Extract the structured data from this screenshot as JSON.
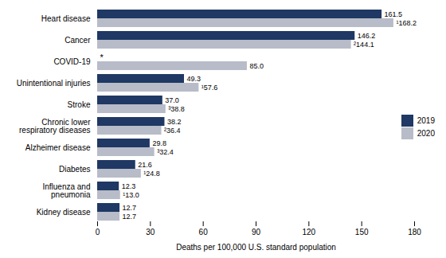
{
  "chart_data": {
    "type": "bar",
    "orientation": "horizontal",
    "categories": [
      "Kidney disease",
      "Influenza and\npneumonia",
      "Diabetes",
      "Alzheimer disease",
      "Chronic lower\nrespiratory diseases",
      "Stroke",
      "Unintentional injuries",
      "COVID-19",
      "Cancer",
      "Heart disease"
    ],
    "series": [
      {
        "name": "2019",
        "color": "#1f3864",
        "values": [
          12.7,
          12.3,
          21.6,
          29.8,
          38.2,
          37.0,
          49.3,
          null,
          146.2,
          161.5
        ],
        "value_labels": [
          "12.7",
          "12.3",
          "21.6",
          "29.8",
          "38.2",
          "37.0",
          "49.3",
          "*",
          "146.2",
          "161.5"
        ]
      },
      {
        "name": "2020",
        "color": "#b8bcc8",
        "values": [
          12.7,
          13.0,
          24.8,
          32.4,
          36.4,
          38.8,
          57.6,
          85.0,
          144.1,
          168.2
        ],
        "value_labels": [
          "12.7",
          "¹13.0",
          "¹24.8",
          "³32.4",
          "²36.4",
          "³38.8",
          "¹57.6",
          "85.0",
          "²144.1",
          "¹168.2"
        ]
      }
    ],
    "xlabel": "Deaths per 100,000 U.S. standard population",
    "xlim": [
      0,
      180
    ],
    "xticks": [
      0,
      30,
      60,
      90,
      120,
      150,
      180
    ],
    "data_labels": true,
    "legend": "right",
    "grid": false
  }
}
